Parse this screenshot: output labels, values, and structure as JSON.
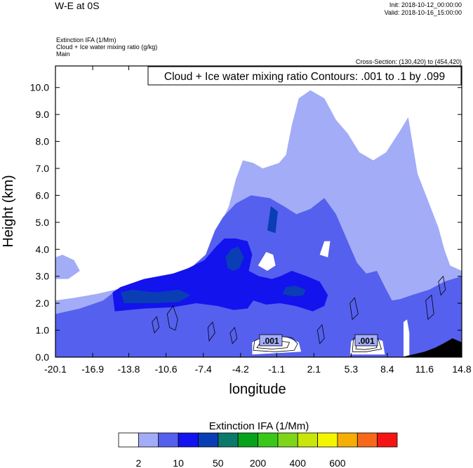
{
  "header": {
    "title": "W-E at 0S",
    "init": "Init: 2018-10-12_00:00:00",
    "valid": "Valid: 2018-10-16_15:00:00",
    "field1": "Extinction IFA   (1/Mm)",
    "field2": "Cloud + Ice water mixing ratio   (g/kg)",
    "field3": "Main",
    "cross_section": "Cross-Section: (130,420) to (454,420)"
  },
  "chart_data": {
    "type": "contour",
    "title": "Cloud + Ice water mixing ratio Contours: .001 to .1 by .099",
    "xlabel": "longitude",
    "ylabel": "Height (km)",
    "xlim": [
      -20.1,
      14.8
    ],
    "ylim": [
      0.0,
      10.8
    ],
    "x_ticks": [
      -20.1,
      -16.9,
      -13.8,
      -10.6,
      -7.4,
      -4.2,
      -1.1,
      2.1,
      5.3,
      8.4,
      11.6,
      14.8
    ],
    "x_tick_labels": [
      "-20.1",
      "-16.9",
      "-13.8",
      "-10.6",
      "-7.4",
      "-4.2",
      "-1.1",
      "2.1",
      "5.3",
      "8.4",
      "11.6",
      "14.8"
    ],
    "y_ticks": [
      0.0,
      1.0,
      2.0,
      3.0,
      4.0,
      5.0,
      6.0,
      7.0,
      8.0,
      9.0,
      10.0
    ],
    "y_tick_labels": [
      "0.0",
      "1.0",
      "2.0",
      "3.0",
      "4.0",
      "5.0",
      "6.0",
      "7.0",
      "8.0",
      "9.0",
      "10.0"
    ],
    "contour_labels": [
      {
        "text": ".001",
        "x": -1.6,
        "y": 0.6
      },
      {
        "text": ".001",
        "x": 6.6,
        "y": 0.6
      }
    ],
    "regions": [
      {
        "level": 1,
        "points": [
          [
            -20.1,
            0
          ],
          [
            -20.1,
            2.1
          ],
          [
            -18.5,
            2.2
          ],
          [
            -16.5,
            2.35
          ],
          [
            -14,
            2.6
          ],
          [
            -11,
            2.75
          ],
          [
            -8.5,
            3.0
          ],
          [
            -7.3,
            3.6
          ],
          [
            -6.3,
            4.6
          ],
          [
            -5.2,
            5.6
          ],
          [
            -4.6,
            6.6
          ],
          [
            -4.0,
            7.3
          ],
          [
            -3.1,
            7.2
          ],
          [
            -2.3,
            7.0
          ],
          [
            -1.6,
            7.1
          ],
          [
            -0.9,
            7.2
          ],
          [
            -0.3,
            7.5
          ],
          [
            0.2,
            8.6
          ],
          [
            0.8,
            9.6
          ],
          [
            1.8,
            9.9
          ],
          [
            3.0,
            9.6
          ],
          [
            4.0,
            8.8
          ],
          [
            5.0,
            8.3
          ],
          [
            6.0,
            7.6
          ],
          [
            7.2,
            7.3
          ],
          [
            8.3,
            7.6
          ],
          [
            9.5,
            8.4
          ],
          [
            10.2,
            8.9
          ],
          [
            11.0,
            6.8
          ],
          [
            12.0,
            5.7
          ],
          [
            12.8,
            4.8
          ],
          [
            13.3,
            4.0
          ],
          [
            13.8,
            3.4
          ],
          [
            14.8,
            3.2
          ],
          [
            14.8,
            0
          ]
        ]
      },
      {
        "level": 1,
        "points": [
          [
            -20.1,
            2.9
          ],
          [
            -20.1,
            3.7
          ],
          [
            -19.5,
            3.8
          ],
          [
            -18.5,
            3.6
          ],
          [
            -18.0,
            3.2
          ],
          [
            -19.0,
            2.9
          ]
        ]
      },
      {
        "level": 2,
        "points": [
          [
            -20.1,
            0
          ],
          [
            -20.1,
            1.6
          ],
          [
            -18,
            1.8
          ],
          [
            -16,
            2.1
          ],
          [
            -14.5,
            2.6
          ],
          [
            -12,
            2.9
          ],
          [
            -10,
            3.1
          ],
          [
            -8.5,
            3.3
          ],
          [
            -7.2,
            3.8
          ],
          [
            -6.4,
            4.7
          ],
          [
            -5.7,
            5.2
          ],
          [
            -4.6,
            5.7
          ],
          [
            -3.3,
            6.0
          ],
          [
            -1.7,
            5.9
          ],
          [
            -0.5,
            5.6
          ],
          [
            0.6,
            5.3
          ],
          [
            1.8,
            5.5
          ],
          [
            3.0,
            5.9
          ],
          [
            4.0,
            5.3
          ],
          [
            5.0,
            4.3
          ],
          [
            5.8,
            3.5
          ],
          [
            6.6,
            3.1
          ],
          [
            7.5,
            3.2
          ],
          [
            8.2,
            2.6
          ],
          [
            8.8,
            2.1
          ],
          [
            9.5,
            2.15
          ],
          [
            10.5,
            2.3
          ],
          [
            12,
            2.5
          ],
          [
            13.3,
            2.8
          ],
          [
            14.8,
            3.0
          ],
          [
            14.8,
            0
          ]
        ]
      },
      {
        "level": 3,
        "points": [
          [
            -15.0,
            1.7
          ],
          [
            -15.2,
            2.4
          ],
          [
            -14.5,
            2.6
          ],
          [
            -12.5,
            2.9
          ],
          [
            -10,
            3.1
          ],
          [
            -8.7,
            3.3
          ],
          [
            -7.3,
            3.6
          ],
          [
            -6.3,
            4.1
          ],
          [
            -5.6,
            4.4
          ],
          [
            -4.6,
            4.4
          ],
          [
            -3.6,
            4.3
          ],
          [
            -3.2,
            3.8
          ],
          [
            -3.5,
            3.2
          ],
          [
            -2.6,
            3.0
          ],
          [
            -1.5,
            2.9
          ],
          [
            -0.8,
            3.0
          ],
          [
            0.2,
            3.2
          ],
          [
            1.5,
            3.0
          ],
          [
            2.6,
            2.8
          ],
          [
            3.3,
            2.3
          ],
          [
            3.0,
            1.9
          ],
          [
            2.0,
            1.7
          ],
          [
            0.5,
            1.9
          ],
          [
            -0.8,
            2.0
          ],
          [
            -2.0,
            1.95
          ],
          [
            -3.1,
            2.1
          ],
          [
            -3.6,
            1.8
          ],
          [
            -4.8,
            1.75
          ],
          [
            -6.2,
            1.9
          ],
          [
            -8.0,
            2.0
          ],
          [
            -10,
            1.85
          ],
          [
            -12.5,
            1.8
          ]
        ]
      },
      {
        "level": 4,
        "points": [
          [
            -14.2,
            2.0
          ],
          [
            -14.5,
            2.4
          ],
          [
            -13.5,
            2.5
          ],
          [
            -11.5,
            2.4
          ],
          [
            -9.5,
            2.5
          ],
          [
            -8.5,
            2.3
          ],
          [
            -9.5,
            2.05
          ],
          [
            -11.5,
            2.0
          ]
        ]
      },
      {
        "level": 4,
        "points": [
          [
            -5.3,
            3.3
          ],
          [
            -5.5,
            3.7
          ],
          [
            -5.0,
            4.0
          ],
          [
            -4.4,
            4.1
          ],
          [
            -3.9,
            3.7
          ],
          [
            -4.3,
            3.3
          ],
          [
            -4.8,
            3.2
          ]
        ]
      },
      {
        "level": 4,
        "points": [
          [
            -0.6,
            2.35
          ],
          [
            -0.3,
            2.6
          ],
          [
            0.5,
            2.65
          ],
          [
            1.4,
            2.5
          ],
          [
            1.2,
            2.3
          ],
          [
            0.3,
            2.25
          ]
        ]
      },
      {
        "level": 4,
        "points": [
          [
            -1.9,
            4.7
          ],
          [
            -1.6,
            5.6
          ],
          [
            -1.0,
            5.4
          ],
          [
            -1.2,
            4.6
          ]
        ]
      },
      {
        "level": 0,
        "points": [
          [
            -2.7,
            3.4
          ],
          [
            -2.0,
            3.9
          ],
          [
            -1.4,
            3.8
          ],
          [
            -1.2,
            3.4
          ],
          [
            -1.9,
            3.2
          ]
        ]
      },
      {
        "level": 0,
        "points": [
          [
            2.6,
            3.8
          ],
          [
            3.0,
            4.3
          ],
          [
            3.5,
            4.3
          ],
          [
            3.3,
            3.7
          ]
        ]
      },
      {
        "level": 0,
        "points": [
          [
            -3.2,
            0.1
          ],
          [
            -3.2,
            0.55
          ],
          [
            -2.3,
            0.75
          ],
          [
            -0.3,
            0.75
          ],
          [
            0.8,
            0.55
          ],
          [
            1.0,
            0.2
          ]
        ]
      },
      {
        "level": 0,
        "points": [
          [
            5.2,
            0.1
          ],
          [
            5.3,
            0.6
          ],
          [
            6.5,
            0.8
          ],
          [
            8.0,
            0.6
          ],
          [
            8.2,
            0.1
          ]
        ]
      },
      {
        "level": 0,
        "points": [
          [
            9.8,
            0
          ],
          [
            9.8,
            1.3
          ],
          [
            10.1,
            1.4
          ],
          [
            10.3,
            0.9
          ],
          [
            10.3,
            0
          ]
        ]
      }
    ],
    "terrain": [
      [
        9.6,
        0
      ],
      [
        10.6,
        0.1
      ],
      [
        11.6,
        0.2
      ],
      [
        12.5,
        0.35
      ],
      [
        13.2,
        0.5
      ],
      [
        14.0,
        0.7
      ],
      [
        14.8,
        0.55
      ],
      [
        14.8,
        0
      ]
    ],
    "contours": [
      [
        [
          -3.1,
          0.25
        ],
        [
          -3.0,
          0.6
        ],
        [
          -2.3,
          0.75
        ],
        [
          -1.0,
          0.78
        ],
        [
          0.2,
          0.72
        ],
        [
          0.7,
          0.5
        ],
        [
          0.4,
          0.25
        ],
        [
          -1.2,
          0.2
        ]
      ],
      [
        [
          -2.8,
          0.35
        ],
        [
          -2.4,
          0.6
        ],
        [
          -1.2,
          0.62
        ],
        [
          0.0,
          0.55
        ],
        [
          -0.2,
          0.35
        ],
        [
          -1.5,
          0.3
        ]
      ],
      [
        [
          5.4,
          0.2
        ],
        [
          5.5,
          0.7
        ],
        [
          6.5,
          0.8
        ],
        [
          7.6,
          0.7
        ],
        [
          7.9,
          0.3
        ],
        [
          6.6,
          0.2
        ]
      ],
      [
        [
          5.7,
          0.3
        ],
        [
          5.8,
          0.6
        ],
        [
          6.6,
          0.65
        ],
        [
          7.4,
          0.55
        ],
        [
          7.5,
          0.35
        ],
        [
          6.5,
          0.28
        ]
      ],
      [
        [
          -10.3,
          1.1
        ],
        [
          -10.5,
          1.6
        ],
        [
          -10.0,
          1.9
        ],
        [
          -9.6,
          1.4
        ],
        [
          -9.8,
          1.0
        ]
      ],
      [
        [
          -11.6,
          0.9
        ],
        [
          -11.8,
          1.3
        ],
        [
          -11.4,
          1.5
        ],
        [
          -11.2,
          1.1
        ]
      ],
      [
        [
          -6.9,
          0.6
        ],
        [
          -7.0,
          1.1
        ],
        [
          -6.6,
          1.3
        ],
        [
          -6.4,
          0.9
        ]
      ],
      [
        [
          -4.9,
          0.5
        ],
        [
          -5.1,
          0.9
        ],
        [
          -4.7,
          1.1
        ],
        [
          -4.5,
          0.7
        ]
      ],
      [
        [
          13.0,
          2.3
        ],
        [
          12.8,
          2.8
        ],
        [
          13.2,
          3.0
        ],
        [
          13.4,
          2.5
        ]
      ],
      [
        [
          11.9,
          1.4
        ],
        [
          11.7,
          2.1
        ],
        [
          12.2,
          2.3
        ],
        [
          12.4,
          1.6
        ]
      ],
      [
        [
          5.4,
          1.4
        ],
        [
          5.2,
          2.0
        ],
        [
          5.6,
          2.2
        ],
        [
          5.9,
          1.6
        ]
      ],
      [
        [
          2.6,
          0.5
        ],
        [
          2.4,
          1.0
        ],
        [
          2.8,
          1.2
        ],
        [
          3.0,
          0.7
        ]
      ]
    ]
  },
  "colorbar": {
    "title": "Extinction IFA  (1/Mm)",
    "colors": [
      "#ffffff",
      "#a3acf7",
      "#5560ee",
      "#1313ee",
      "#0a3eb4",
      "#0b7a6a",
      "#07a21a",
      "#39c81a",
      "#7ed61a",
      "#c8e60a",
      "#f5f500",
      "#f6ad05",
      "#f6691a",
      "#f51414"
    ],
    "tick_labels": [
      "2",
      "10",
      "50",
      "200",
      "400",
      "600"
    ]
  },
  "palette": {
    "level0": "#ffffff",
    "level1": "#a3acf7",
    "level2": "#5560ee",
    "level3": "#1313ee",
    "level4": "#0a3eb4",
    "terrain": "#000000",
    "contour": "#000000"
  }
}
